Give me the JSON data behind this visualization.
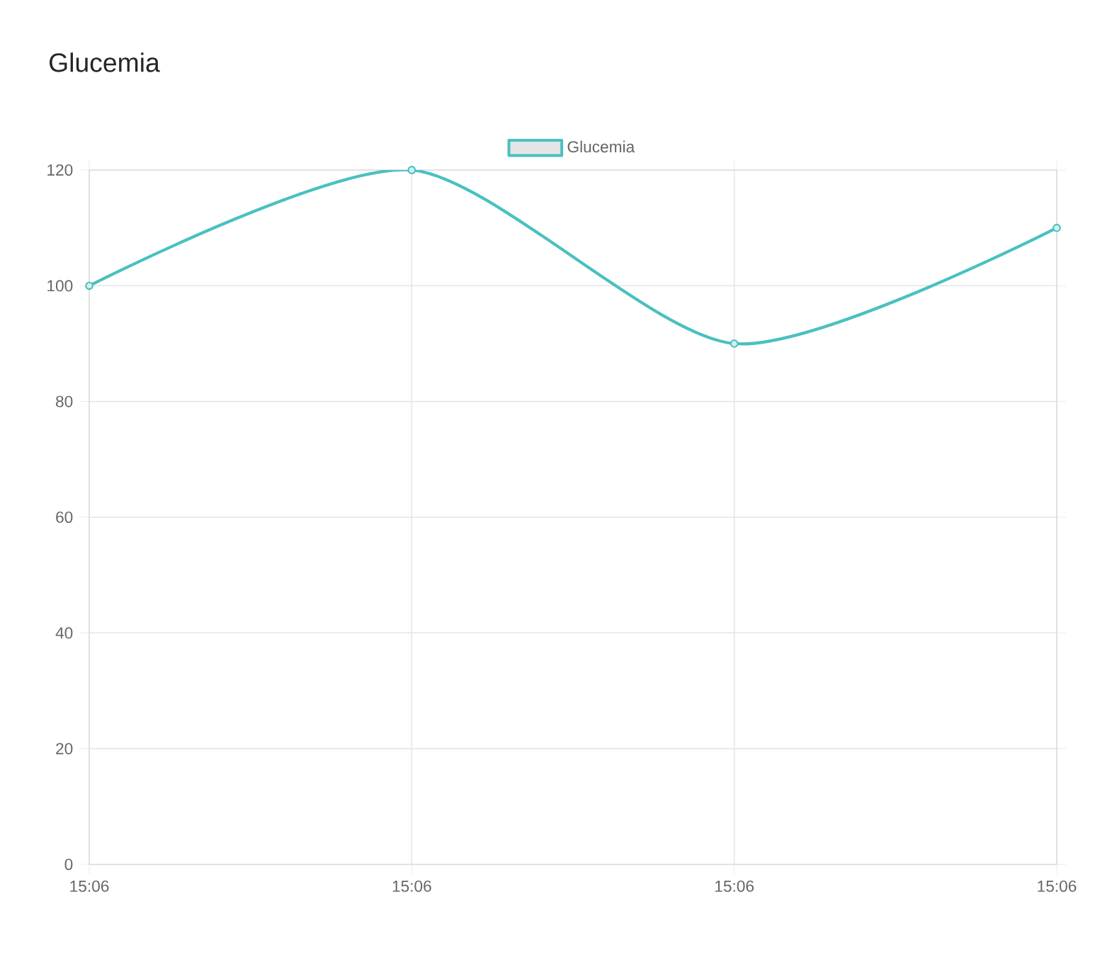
{
  "chart_data": {
    "type": "line",
    "title": "Glucemia",
    "categories": [
      "15:06",
      "15:06",
      "15:06",
      "15:06"
    ],
    "series": [
      {
        "name": "Glucemia",
        "color": "#4bc0c0",
        "values": [
          100,
          120,
          90,
          110
        ]
      }
    ],
    "ylim": [
      0,
      120
    ],
    "yticks": [
      0,
      20,
      40,
      60,
      80,
      100,
      120
    ],
    "grid": true,
    "legend": "top",
    "marker": "circle",
    "line_style": "solid"
  }
}
